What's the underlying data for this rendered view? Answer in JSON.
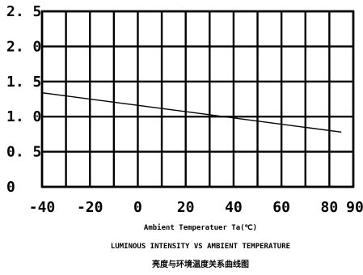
{
  "chart_data": {
    "type": "line",
    "title": "LUMINOUS INTENSITY VS AMBIENT TEMPERATURE",
    "subtitle": "亮度与环境温度关系曲线图",
    "xlabel": "Ambient Temperatuer Ta(℃)",
    "ylabel": "",
    "xlim": [
      -40,
      90
    ],
    "ylim": [
      0,
      2.5
    ],
    "grid": true,
    "x_ticks": [
      -40,
      -20,
      0,
      20,
      40,
      60,
      80,
      90
    ],
    "x_tick_labels": [
      "-40",
      "-20",
      "0",
      "20",
      "40",
      "60",
      "80",
      "90"
    ],
    "y_ticks": [
      0,
      0.5,
      1.0,
      1.5,
      2.0,
      2.5
    ],
    "y_tick_labels": [
      "0",
      "0. 5",
      "1. 0",
      "1. 5",
      "2. 0",
      "2. 5"
    ],
    "series": [
      {
        "x": [
          -40,
          85
        ],
        "y": [
          1.34,
          0.78
        ]
      }
    ]
  },
  "colors": {
    "line": "#000000",
    "grid": "#000000",
    "background": "#ffffff"
  }
}
